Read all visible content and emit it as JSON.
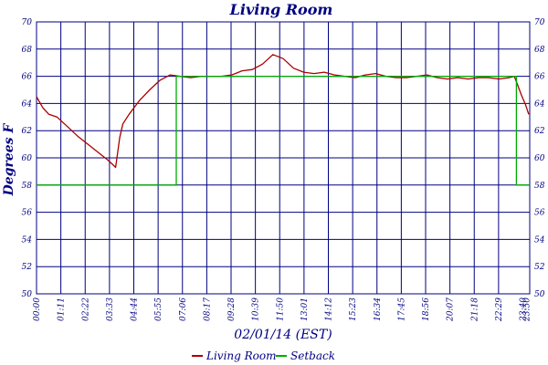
{
  "chart_data": {
    "type": "line",
    "title": "Living Room",
    "ylabel": "Degrees F",
    "xlabel": "02/01/14 (EST)",
    "ylim": [
      50,
      70
    ],
    "y_ticks": [
      50,
      52,
      54,
      56,
      58,
      60,
      62,
      64,
      66,
      68,
      70
    ],
    "x_tick_labels": [
      "00:00",
      "01:11",
      "02:22",
      "03:33",
      "04:44",
      "05:55",
      "07:06",
      "08:17",
      "09:28",
      "10:39",
      "11:50",
      "13:01",
      "14:12",
      "15:23",
      "16:34",
      "17:45",
      "18:56",
      "20:07",
      "21:18",
      "22:29",
      "23:40",
      "23:50"
    ],
    "grid": true,
    "legend_position": "bottom",
    "series": [
      {
        "name": "Living Room",
        "color": "#aa0000",
        "x_hours": [
          0,
          0.3,
          0.6,
          1.0,
          1.5,
          2.0,
          2.5,
          3.0,
          3.5,
          3.85,
          4.05,
          4.2,
          4.5,
          5.0,
          5.5,
          6.0,
          6.5,
          7.0,
          7.5,
          8.0,
          8.5,
          9.0,
          9.5,
          10.0,
          10.5,
          11.0,
          11.5,
          12.0,
          12.5,
          13.0,
          13.5,
          14.0,
          14.5,
          15.0,
          15.5,
          16.0,
          16.5,
          17.0,
          17.5,
          18.0,
          18.5,
          19.0,
          19.5,
          20.0,
          20.5,
          21.0,
          21.5,
          22.0,
          22.5,
          23.0,
          23.25,
          23.4,
          23.6,
          23.8,
          23.95
        ],
        "values": [
          64.5,
          63.7,
          63.2,
          63.0,
          62.3,
          61.6,
          61.0,
          60.4,
          59.8,
          59.3,
          61.5,
          62.5,
          63.2,
          64.2,
          65.0,
          65.7,
          66.1,
          66.0,
          65.9,
          66.0,
          66.0,
          66.0,
          66.1,
          66.4,
          66.5,
          66.9,
          67.6,
          67.3,
          66.6,
          66.3,
          66.2,
          66.3,
          66.1,
          66.0,
          65.9,
          66.1,
          66.2,
          66.0,
          65.9,
          65.9,
          66.0,
          66.1,
          65.9,
          65.8,
          65.9,
          65.8,
          65.9,
          65.9,
          65.8,
          65.9,
          66.0,
          65.4,
          64.6,
          63.9,
          63.2
        ]
      },
      {
        "name": "Setback",
        "color": "#00aa00",
        "x_hours": [
          0,
          6.8,
          6.8,
          23.35,
          23.35,
          24.0
        ],
        "values": [
          58,
          58,
          66,
          66,
          58,
          58
        ]
      }
    ]
  }
}
